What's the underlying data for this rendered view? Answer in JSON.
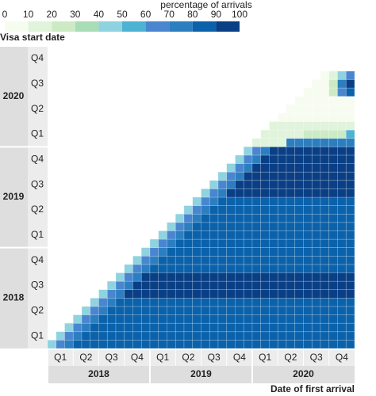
{
  "chart_data": {
    "type": "heatmap",
    "legend": {
      "title": "percentage of arrivals",
      "ticks": [
        0,
        10,
        20,
        30,
        40,
        50,
        60,
        70,
        80,
        90,
        100
      ],
      "colors": [
        "#f7fcf0",
        "#e0f3db",
        "#ccebc5",
        "#a8ddb5",
        "#8fd3e0",
        "#4eb3d3",
        "#4a86d0",
        "#2b7fc0",
        "#0b62ab",
        "#0a3f85"
      ]
    },
    "y_label": "Visa start date",
    "x_label": "Date of first arrival",
    "y_groups": [
      {
        "label": "2018",
        "quarters": [
          "Q1",
          "Q2",
          "Q3",
          "Q4"
        ]
      },
      {
        "label": "2019",
        "quarters": [
          "Q1",
          "Q2",
          "Q3",
          "Q4"
        ]
      },
      {
        "label": "2020",
        "quarters": [
          "Q1",
          "Q2",
          "Q3",
          "Q4"
        ]
      }
    ],
    "x_groups": [
      {
        "label": "2018",
        "quarters": [
          "Q1",
          "Q2",
          "Q3",
          "Q4"
        ]
      },
      {
        "label": "2019",
        "quarters": [
          "Q1",
          "Q2",
          "Q3",
          "Q4"
        ]
      },
      {
        "label": "2020",
        "quarters": [
          "Q1",
          "Q2",
          "Q3",
          "Q4"
        ]
      }
    ],
    "z": [
      [
        40,
        65,
        75,
        85,
        85,
        85,
        85,
        85,
        85,
        85,
        85,
        85,
        85,
        85,
        85,
        85,
        85,
        85,
        85,
        85,
        85,
        85,
        85,
        85,
        85,
        85,
        85,
        85,
        85,
        85,
        85,
        85,
        85,
        85,
        85,
        85
      ],
      [
        null,
        40,
        65,
        75,
        85,
        85,
        85,
        85,
        85,
        85,
        85,
        85,
        85,
        85,
        85,
        85,
        85,
        85,
        85,
        85,
        85,
        85,
        85,
        85,
        85,
        85,
        85,
        85,
        85,
        85,
        85,
        85,
        85,
        85,
        85,
        85
      ],
      [
        null,
        null,
        40,
        65,
        75,
        85,
        85,
        85,
        85,
        85,
        85,
        85,
        85,
        85,
        85,
        85,
        85,
        85,
        85,
        85,
        85,
        85,
        85,
        85,
        85,
        85,
        85,
        85,
        85,
        85,
        85,
        85,
        85,
        85,
        85,
        85
      ],
      [
        null,
        null,
        null,
        40,
        65,
        75,
        85,
        85,
        85,
        85,
        85,
        85,
        85,
        85,
        85,
        85,
        85,
        85,
        85,
        85,
        85,
        85,
        85,
        85,
        85,
        85,
        85,
        85,
        85,
        85,
        85,
        85,
        85,
        85,
        85,
        85
      ],
      [
        null,
        null,
        null,
        null,
        40,
        65,
        75,
        85,
        85,
        85,
        85,
        85,
        85,
        85,
        85,
        85,
        85,
        85,
        85,
        85,
        85,
        85,
        85,
        85,
        85,
        85,
        85,
        85,
        85,
        85,
        85,
        85,
        85,
        85,
        85,
        85
      ],
      [
        null,
        null,
        null,
        null,
        null,
        40,
        65,
        75,
        85,
        85,
        85,
        85,
        85,
        85,
        85,
        85,
        85,
        85,
        85,
        85,
        85,
        85,
        85,
        85,
        85,
        85,
        85,
        85,
        85,
        85,
        85,
        85,
        85,
        85,
        85,
        85
      ],
      [
        null,
        null,
        null,
        null,
        null,
        null,
        40,
        65,
        75,
        95,
        95,
        95,
        95,
        95,
        95,
        95,
        95,
        95,
        95,
        95,
        95,
        95,
        95,
        95,
        95,
        95,
        95,
        95,
        95,
        95,
        95,
        95,
        95,
        95,
        95,
        95
      ],
      [
        null,
        null,
        null,
        null,
        null,
        null,
        null,
        40,
        65,
        75,
        95,
        95,
        95,
        95,
        95,
        95,
        95,
        95,
        95,
        95,
        95,
        95,
        95,
        95,
        95,
        95,
        95,
        95,
        95,
        95,
        95,
        95,
        95,
        95,
        95,
        95
      ],
      [
        null,
        null,
        null,
        null,
        null,
        null,
        null,
        null,
        40,
        65,
        75,
        95,
        95,
        95,
        95,
        95,
        95,
        95,
        95,
        95,
        95,
        95,
        95,
        95,
        95,
        95,
        95,
        95,
        95,
        95,
        95,
        95,
        95,
        95,
        95,
        95
      ],
      [
        null,
        null,
        null,
        null,
        null,
        null,
        null,
        null,
        null,
        40,
        65,
        75,
        85,
        85,
        85,
        85,
        85,
        85,
        85,
        85,
        85,
        85,
        85,
        85,
        85,
        85,
        85,
        85,
        85,
        85,
        85,
        85,
        85,
        85,
        85,
        85
      ],
      [
        null,
        null,
        null,
        null,
        null,
        null,
        null,
        null,
        null,
        null,
        40,
        65,
        75,
        85,
        85,
        85,
        85,
        85,
        85,
        85,
        85,
        85,
        85,
        85,
        85,
        85,
        85,
        85,
        85,
        85,
        85,
        85,
        85,
        85,
        85,
        85
      ],
      [
        null,
        null,
        null,
        null,
        null,
        null,
        null,
        null,
        null,
        null,
        null,
        40,
        65,
        75,
        85,
        85,
        85,
        85,
        85,
        85,
        85,
        85,
        85,
        85,
        85,
        85,
        85,
        85,
        85,
        85,
        85,
        85,
        85,
        85,
        85,
        85
      ],
      [
        null,
        null,
        null,
        null,
        null,
        null,
        null,
        null,
        null,
        null,
        null,
        null,
        40,
        65,
        75,
        80,
        80,
        80,
        80,
        80,
        80,
        80,
        80,
        80,
        80,
        80,
        80,
        80,
        80,
        80,
        80,
        80,
        80,
        80,
        80,
        80
      ],
      [
        null,
        null,
        null,
        null,
        null,
        null,
        null,
        null,
        null,
        null,
        null,
        null,
        null,
        40,
        65,
        75,
        80,
        80,
        80,
        80,
        80,
        80,
        80,
        80,
        80,
        80,
        80,
        80,
        80,
        80,
        80,
        80,
        80,
        80,
        80,
        80
      ],
      [
        null,
        null,
        null,
        null,
        null,
        null,
        null,
        null,
        null,
        null,
        null,
        null,
        null,
        null,
        40,
        65,
        75,
        80,
        80,
        80,
        80,
        80,
        80,
        80,
        80,
        80,
        80,
        80,
        80,
        80,
        80,
        80,
        80,
        80,
        80,
        80
      ],
      [
        null,
        null,
        null,
        null,
        null,
        null,
        null,
        null,
        null,
        null,
        null,
        null,
        null,
        null,
        null,
        40,
        65,
        75,
        85,
        85,
        85,
        85,
        85,
        85,
        85,
        85,
        85,
        85,
        85,
        85,
        85,
        85,
        85,
        85,
        85,
        85
      ],
      [
        null,
        null,
        null,
        null,
        null,
        null,
        null,
        null,
        null,
        null,
        null,
        null,
        null,
        null,
        null,
        null,
        40,
        65,
        75,
        85,
        85,
        85,
        85,
        85,
        85,
        85,
        85,
        85,
        85,
        85,
        85,
        85,
        85,
        85,
        85,
        85
      ],
      [
        null,
        null,
        null,
        null,
        null,
        null,
        null,
        null,
        null,
        null,
        null,
        null,
        null,
        null,
        null,
        null,
        null,
        40,
        65,
        75,
        85,
        85,
        85,
        85,
        85,
        85,
        85,
        85,
        85,
        85,
        85,
        85,
        85,
        85,
        85,
        85
      ],
      [
        null,
        null,
        null,
        null,
        null,
        null,
        null,
        null,
        null,
        null,
        null,
        null,
        null,
        null,
        null,
        null,
        null,
        null,
        40,
        65,
        75,
        95,
        95,
        95,
        95,
        95,
        95,
        95,
        95,
        95,
        95,
        95,
        95,
        95,
        95,
        95
      ],
      [
        null,
        null,
        null,
        null,
        null,
        null,
        null,
        null,
        null,
        null,
        null,
        null,
        null,
        null,
        null,
        null,
        null,
        null,
        null,
        40,
        65,
        75,
        95,
        95,
        95,
        95,
        95,
        95,
        95,
        95,
        95,
        95,
        95,
        95,
        95,
        95
      ],
      [
        null,
        null,
        null,
        null,
        null,
        null,
        null,
        null,
        null,
        null,
        null,
        null,
        null,
        null,
        null,
        null,
        null,
        null,
        null,
        null,
        40,
        65,
        75,
        95,
        95,
        95,
        95,
        95,
        95,
        95,
        95,
        95,
        95,
        95,
        95,
        95
      ],
      [
        null,
        null,
        null,
        null,
        null,
        null,
        null,
        null,
        null,
        null,
        null,
        null,
        null,
        null,
        null,
        null,
        null,
        null,
        null,
        null,
        null,
        40,
        65,
        75,
        90,
        90,
        90,
        90,
        90,
        90,
        90,
        90,
        90,
        90,
        90,
        90
      ],
      [
        null,
        null,
        null,
        null,
        null,
        null,
        null,
        null,
        null,
        null,
        null,
        null,
        null,
        null,
        null,
        null,
        null,
        null,
        null,
        null,
        null,
        null,
        40,
        65,
        75,
        90,
        90,
        90,
        90,
        90,
        90,
        90,
        90,
        90,
        90,
        90
      ],
      [
        null,
        null,
        null,
        null,
        null,
        null,
        null,
        null,
        null,
        null,
        null,
        null,
        null,
        null,
        null,
        null,
        null,
        null,
        null,
        null,
        null,
        null,
        null,
        40,
        65,
        75,
        90,
        90,
        90,
        90,
        90,
        90,
        90,
        90,
        90,
        90
      ],
      [
        null,
        null,
        null,
        null,
        null,
        null,
        null,
        null,
        null,
        null,
        null,
        null,
        null,
        null,
        null,
        null,
        null,
        null,
        null,
        null,
        null,
        null,
        null,
        null,
        15,
        15,
        15,
        15,
        75,
        75,
        75,
        75,
        75,
        75,
        75,
        75
      ],
      [
        null,
        null,
        null,
        null,
        null,
        null,
        null,
        null,
        null,
        null,
        null,
        null,
        null,
        null,
        null,
        null,
        null,
        null,
        null,
        null,
        null,
        null,
        null,
        null,
        null,
        10,
        10,
        10,
        10,
        10,
        20,
        20,
        20,
        20,
        20,
        50
      ],
      [
        null,
        null,
        null,
        null,
        null,
        null,
        null,
        null,
        null,
        null,
        null,
        null,
        null,
        null,
        null,
        null,
        null,
        null,
        null,
        null,
        null,
        null,
        null,
        null,
        null,
        null,
        10,
        10,
        10,
        10,
        10,
        10,
        10,
        10,
        10,
        10
      ],
      [
        null,
        null,
        null,
        null,
        null,
        null,
        null,
        null,
        null,
        null,
        null,
        null,
        null,
        null,
        null,
        null,
        null,
        null,
        null,
        null,
        null,
        null,
        null,
        null,
        null,
        null,
        null,
        5,
        5,
        5,
        5,
        5,
        5,
        5,
        5,
        5
      ],
      [
        null,
        null,
        null,
        null,
        null,
        null,
        null,
        null,
        null,
        null,
        null,
        null,
        null,
        null,
        null,
        null,
        null,
        null,
        null,
        null,
        null,
        null,
        null,
        null,
        null,
        null,
        null,
        null,
        5,
        5,
        5,
        5,
        5,
        5,
        5,
        5
      ],
      [
        null,
        null,
        null,
        null,
        null,
        null,
        null,
        null,
        null,
        null,
        null,
        null,
        null,
        null,
        null,
        null,
        null,
        null,
        null,
        null,
        null,
        null,
        null,
        null,
        null,
        null,
        null,
        null,
        null,
        5,
        5,
        5,
        5,
        5,
        5,
        5
      ],
      [
        null,
        null,
        null,
        null,
        null,
        null,
        null,
        null,
        null,
        null,
        null,
        null,
        null,
        null,
        null,
        null,
        null,
        null,
        null,
        null,
        null,
        null,
        null,
        null,
        null,
        null,
        null,
        null,
        null,
        null,
        5,
        5,
        5,
        20,
        60,
        80
      ],
      [
        null,
        null,
        null,
        null,
        null,
        null,
        null,
        null,
        null,
        null,
        null,
        null,
        null,
        null,
        null,
        null,
        null,
        null,
        null,
        null,
        null,
        null,
        null,
        null,
        null,
        null,
        null,
        null,
        null,
        null,
        null,
        5,
        5,
        20,
        70,
        90
      ],
      [
        null,
        null,
        null,
        null,
        null,
        null,
        null,
        null,
        null,
        null,
        null,
        null,
        null,
        null,
        null,
        null,
        null,
        null,
        null,
        null,
        null,
        null,
        null,
        null,
        null,
        null,
        null,
        null,
        null,
        null,
        null,
        null,
        5,
        10,
        40,
        60
      ],
      [
        null,
        null,
        null,
        null,
        null,
        null,
        null,
        null,
        null,
        null,
        null,
        null,
        null,
        null,
        null,
        null,
        null,
        null,
        null,
        null,
        null,
        null,
        null,
        null,
        null,
        null,
        null,
        null,
        null,
        null,
        null,
        null,
        null,
        null,
        null,
        null
      ],
      [
        null,
        null,
        null,
        null,
        null,
        null,
        null,
        null,
        null,
        null,
        null,
        null,
        null,
        null,
        null,
        null,
        null,
        null,
        null,
        null,
        null,
        null,
        null,
        null,
        null,
        null,
        null,
        null,
        null,
        null,
        null,
        null,
        null,
        null,
        null,
        null
      ],
      [
        null,
        null,
        null,
        null,
        null,
        null,
        null,
        null,
        null,
        null,
        null,
        null,
        null,
        null,
        null,
        null,
        null,
        null,
        null,
        null,
        null,
        null,
        null,
        null,
        null,
        null,
        null,
        null,
        null,
        null,
        null,
        null,
        null,
        null,
        null,
        null
      ]
    ]
  }
}
